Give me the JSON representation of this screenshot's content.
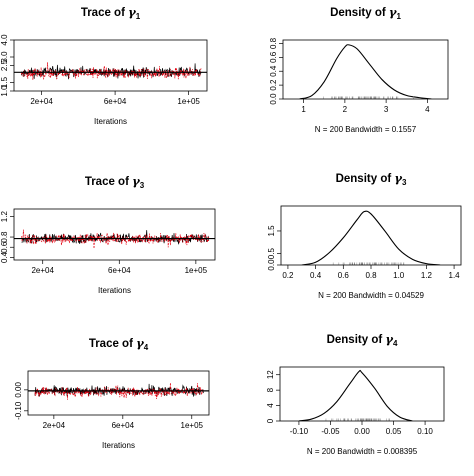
{
  "chart_data": [
    {
      "type": "line",
      "title_text": "Trace of ",
      "title_symbol": "γ",
      "title_sub": "1",
      "xlabel": "Iterations",
      "ylabel": "",
      "xlim": [
        5000,
        110000
      ],
      "ylim": [
        1.0,
        4.0
      ],
      "xticks": [
        20000,
        60000,
        100000
      ],
      "xtick_labels": [
        "2e+04",
        "6e+04",
        "1e+05"
      ],
      "yticks": [
        1.0,
        1.5,
        2.5,
        3.0,
        4.0
      ],
      "ytick_labels": [
        "1.0",
        "1.5",
        "2.5",
        "3.0",
        "4.0"
      ],
      "series": [
        {
          "color": "#000000",
          "style": "solid",
          "center": 2.1,
          "spread": 0.42,
          "seed": 11
        },
        {
          "color": "#e3000f",
          "style": "dashed",
          "center": 2.05,
          "spread": 0.42,
          "seed": 23
        }
      ],
      "grid": false
    },
    {
      "type": "line",
      "title_text": "Density of ",
      "title_symbol": "γ",
      "title_sub": "1",
      "xlabel": "N = 200   Bandwidth = 0.1557",
      "ylabel": "",
      "xlim": [
        0.5,
        4.5
      ],
      "ylim": [
        0,
        0.85
      ],
      "xticks": [
        1,
        2,
        3,
        4
      ],
      "xtick_labels": [
        "1",
        "2",
        "3",
        "4"
      ],
      "yticks": [
        0,
        0.2,
        0.4,
        0.6,
        0.8
      ],
      "ytick_labels": [
        "0.0",
        "0.2",
        "0.4",
        "0.6",
        "0.8"
      ],
      "x": [
        0.9,
        1.2,
        1.5,
        1.8,
        2.0,
        2.1,
        2.3,
        2.6,
        2.9,
        3.2,
        3.5,
        3.8,
        4.1
      ],
      "y": [
        0.0,
        0.05,
        0.25,
        0.58,
        0.75,
        0.78,
        0.72,
        0.5,
        0.28,
        0.13,
        0.05,
        0.02,
        0.0
      ],
      "rug_range": [
        1.2,
        3.9
      ],
      "grid": false
    },
    {
      "type": "line",
      "title_text": "Trace of ",
      "title_symbol": "γ",
      "title_sub": "3",
      "xlabel": "Iterations",
      "ylabel": "",
      "xlim": [
        5000,
        110000
      ],
      "ylim": [
        0.35,
        1.35
      ],
      "xticks": [
        20000,
        60000,
        100000
      ],
      "xtick_labels": [
        "2e+04",
        "6e+04",
        "1e+05"
      ],
      "yticks": [
        0.4,
        0.6,
        0.8,
        1.2
      ],
      "ytick_labels": [
        "0.4",
        "0.6",
        "0.8",
        "1.2"
      ],
      "series": [
        {
          "color": "#000000",
          "style": "solid",
          "center": 0.77,
          "spread": 0.13,
          "seed": 37
        },
        {
          "color": "#e3000f",
          "style": "dashed",
          "center": 0.76,
          "spread": 0.14,
          "seed": 41
        }
      ],
      "grid": false
    },
    {
      "type": "line",
      "title_text": "Density of ",
      "title_symbol": "γ",
      "title_sub": "3",
      "xlabel": "N = 200   Bandwidth = 0.04529",
      "ylabel": "",
      "xlim": [
        0.15,
        1.45
      ],
      "ylim": [
        0,
        2.6
      ],
      "xticks": [
        0.2,
        0.4,
        0.6,
        0.8,
        1.0,
        1.2,
        1.4
      ],
      "xtick_labels": [
        "0.2",
        "0.4",
        "0.6",
        "0.8",
        "1.0",
        "1.2",
        "1.4"
      ],
      "yticks": [
        0,
        0.5,
        1.5
      ],
      "ytick_labels": [
        "0.0",
        "0.5",
        "1.5"
      ],
      "x": [
        0.3,
        0.4,
        0.5,
        0.6,
        0.7,
        0.75,
        0.8,
        0.9,
        1.0,
        1.1,
        1.2,
        1.3
      ],
      "y": [
        0.0,
        0.12,
        0.55,
        1.2,
        2.0,
        2.35,
        2.25,
        1.5,
        0.7,
        0.25,
        0.06,
        0.0
      ],
      "rug_range": [
        0.42,
        1.22
      ],
      "grid": false
    },
    {
      "type": "line",
      "title_text": "Trace of ",
      "title_symbol": "γ",
      "title_sub": "4",
      "xlabel": "Iterations",
      "ylabel": "",
      "xlim": [
        5000,
        110000
      ],
      "ylim": [
        -0.12,
        0.09
      ],
      "xticks": [
        20000,
        60000,
        100000
      ],
      "xtick_labels": [
        "2e+04",
        "6e+04",
        "1e+05"
      ],
      "yticks": [
        -0.1,
        0.0
      ],
      "ytick_labels": [
        "-0.10",
        "0.00"
      ],
      "series": [
        {
          "color": "#000000",
          "style": "solid",
          "center": -0.005,
          "spread": 0.032,
          "seed": 53
        },
        {
          "color": "#e3000f",
          "style": "dashed",
          "center": -0.008,
          "spread": 0.032,
          "seed": 67
        }
      ],
      "grid": false
    },
    {
      "type": "line",
      "title_text": "Density of ",
      "title_symbol": "γ",
      "title_sub": "4",
      "xlabel": "N = 200   Bandwidth = 0.008395",
      "ylabel": "",
      "xlim": [
        -0.13,
        0.13
      ],
      "ylim": [
        0,
        14
      ],
      "xticks": [
        -0.1,
        -0.05,
        0.0,
        0.05,
        0.1
      ],
      "xtick_labels": [
        "-0.10",
        "-0.05",
        "0.00",
        "0.05",
        "0.10"
      ],
      "yticks": [
        0,
        4,
        8,
        12
      ],
      "ytick_labels": [
        "0",
        "4",
        "8",
        "12"
      ],
      "x": [
        -0.1,
        -0.08,
        -0.06,
        -0.04,
        -0.02,
        -0.005,
        0.0,
        0.02,
        0.04,
        0.06,
        0.08
      ],
      "y": [
        0.0,
        0.5,
        2.0,
        5.0,
        9.5,
        12.8,
        12.5,
        8.5,
        3.8,
        1.0,
        0.0
      ],
      "rug_range": [
        -0.07,
        0.07
      ],
      "grid": false
    }
  ]
}
